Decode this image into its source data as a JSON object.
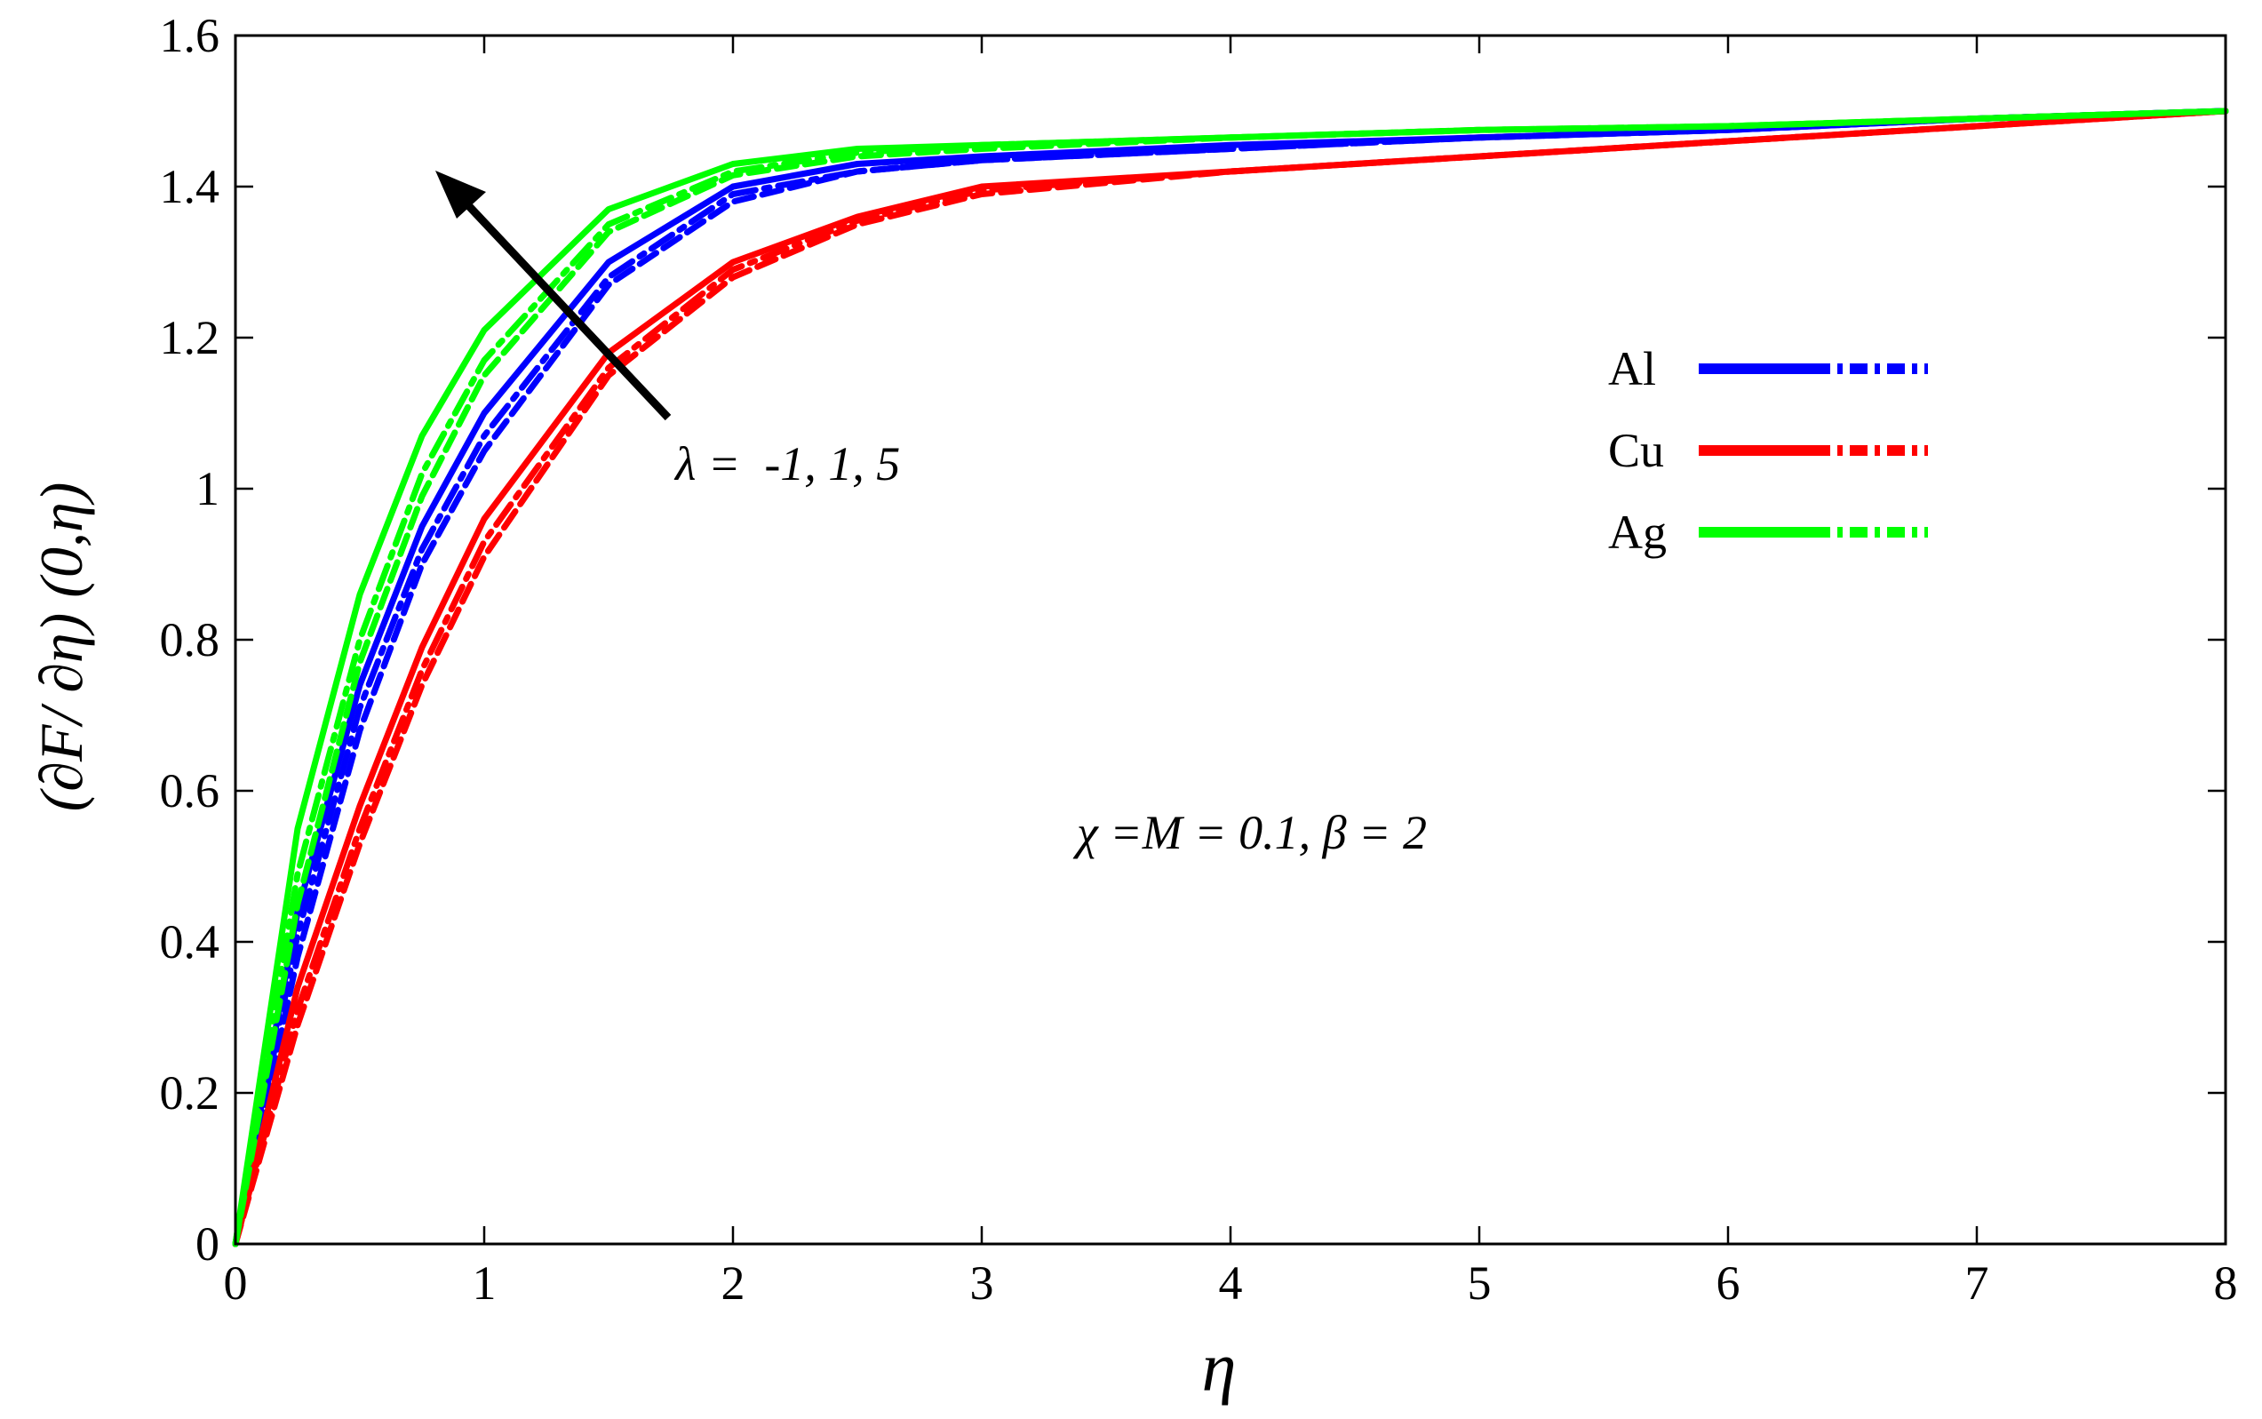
{
  "chart_data": {
    "type": "line",
    "xlabel": "η",
    "ylabel": "(∂F/ ∂η) (0,η)",
    "xlim": [
      0,
      8
    ],
    "ylim": [
      0,
      1.6
    ],
    "xticks": [
      0,
      1,
      2,
      3,
      4,
      5,
      6,
      7,
      8
    ],
    "xtick_labels": [
      "0",
      "1",
      "2",
      "3",
      "4",
      "5",
      "6",
      "7",
      "8"
    ],
    "yticks": [
      0,
      0.2,
      0.4,
      0.6,
      0.8,
      1.0,
      1.2,
      1.4,
      1.6
    ],
    "ytick_labels": [
      "0",
      "0.2",
      "0.4",
      "0.6",
      "0.8",
      "1",
      "1.2",
      "1.4",
      "1.6"
    ],
    "grid": false,
    "legend": {
      "placement": "right",
      "entries": [
        {
          "label": "Al",
          "color": "#0000ff"
        },
        {
          "label": "Cu",
          "color": "#ff0000"
        },
        {
          "label": "Ag",
          "color": "#00ff00"
        }
      ]
    },
    "annotations": {
      "arrow_label": "λ =  -1, 1, 5",
      "params": "χ =M = 0.1, β = 2"
    },
    "series": [
      {
        "group": "Al",
        "color": "#0000ff",
        "style": "solid",
        "x": [
          0,
          0.25,
          0.5,
          0.75,
          1,
          1.5,
          2,
          2.5,
          3,
          4,
          5,
          6,
          7,
          8
        ],
        "y": [
          0,
          0.44,
          0.74,
          0.95,
          1.1,
          1.3,
          1.4,
          1.43,
          1.44,
          1.455,
          1.465,
          1.475,
          1.49,
          1.5
        ]
      },
      {
        "group": "Al",
        "color": "#0000ff",
        "style": "dashdot",
        "x": [
          0,
          0.25,
          0.5,
          0.75,
          1,
          1.5,
          2,
          2.5,
          3,
          4,
          5,
          6,
          7,
          8
        ],
        "y": [
          0,
          0.41,
          0.71,
          0.92,
          1.07,
          1.28,
          1.39,
          1.42,
          1.435,
          1.45,
          1.465,
          1.475,
          1.49,
          1.5
        ]
      },
      {
        "group": "Al",
        "color": "#0000ff",
        "style": "dashed",
        "x": [
          0,
          0.25,
          0.5,
          0.75,
          1,
          1.5,
          2,
          2.5,
          3,
          4,
          5,
          6,
          7,
          8
        ],
        "y": [
          0,
          0.38,
          0.68,
          0.9,
          1.05,
          1.27,
          1.38,
          1.42,
          1.435,
          1.45,
          1.465,
          1.475,
          1.49,
          1.5
        ]
      },
      {
        "group": "Cu",
        "color": "#ff0000",
        "style": "solid",
        "x": [
          0,
          0.25,
          0.5,
          0.75,
          1,
          1.5,
          2,
          2.5,
          3,
          4,
          5,
          6,
          7,
          8
        ],
        "y": [
          0,
          0.34,
          0.58,
          0.79,
          0.96,
          1.18,
          1.3,
          1.36,
          1.4,
          1.42,
          1.44,
          1.46,
          1.48,
          1.5
        ]
      },
      {
        "group": "Cu",
        "color": "#ff0000",
        "style": "dashdot",
        "x": [
          0,
          0.25,
          0.5,
          0.75,
          1,
          1.5,
          2,
          2.5,
          3,
          4,
          5,
          6,
          7,
          8
        ],
        "y": [
          0,
          0.31,
          0.55,
          0.76,
          0.93,
          1.16,
          1.29,
          1.355,
          1.395,
          1.42,
          1.44,
          1.46,
          1.48,
          1.5
        ]
      },
      {
        "group": "Cu",
        "color": "#ff0000",
        "style": "dashed",
        "x": [
          0,
          0.25,
          0.5,
          0.75,
          1,
          1.5,
          2,
          2.5,
          3,
          4,
          5,
          6,
          7,
          8
        ],
        "y": [
          0,
          0.29,
          0.53,
          0.74,
          0.91,
          1.15,
          1.28,
          1.35,
          1.39,
          1.42,
          1.44,
          1.46,
          1.48,
          1.5
        ]
      },
      {
        "group": "Ag",
        "color": "#00ff00",
        "style": "solid",
        "x": [
          0,
          0.25,
          0.5,
          0.75,
          1,
          1.5,
          2,
          2.5,
          3,
          4,
          5,
          6,
          7,
          8
        ],
        "y": [
          0,
          0.55,
          0.86,
          1.07,
          1.21,
          1.37,
          1.43,
          1.45,
          1.455,
          1.465,
          1.475,
          1.48,
          1.49,
          1.5
        ]
      },
      {
        "group": "Ag",
        "color": "#00ff00",
        "style": "dashdot",
        "x": [
          0,
          0.25,
          0.5,
          0.75,
          1,
          1.5,
          2,
          2.5,
          3,
          4,
          5,
          6,
          7,
          8
        ],
        "y": [
          0,
          0.49,
          0.8,
          1.02,
          1.17,
          1.35,
          1.42,
          1.445,
          1.455,
          1.465,
          1.475,
          1.48,
          1.49,
          1.5
        ]
      },
      {
        "group": "Ag",
        "color": "#00ff00",
        "style": "dashed",
        "x": [
          0,
          0.25,
          0.5,
          0.75,
          1,
          1.5,
          2,
          2.5,
          3,
          4,
          5,
          6,
          7,
          8
        ],
        "y": [
          0,
          0.45,
          0.77,
          0.99,
          1.15,
          1.34,
          1.415,
          1.44,
          1.45,
          1.465,
          1.475,
          1.48,
          1.49,
          1.5
        ]
      }
    ]
  }
}
